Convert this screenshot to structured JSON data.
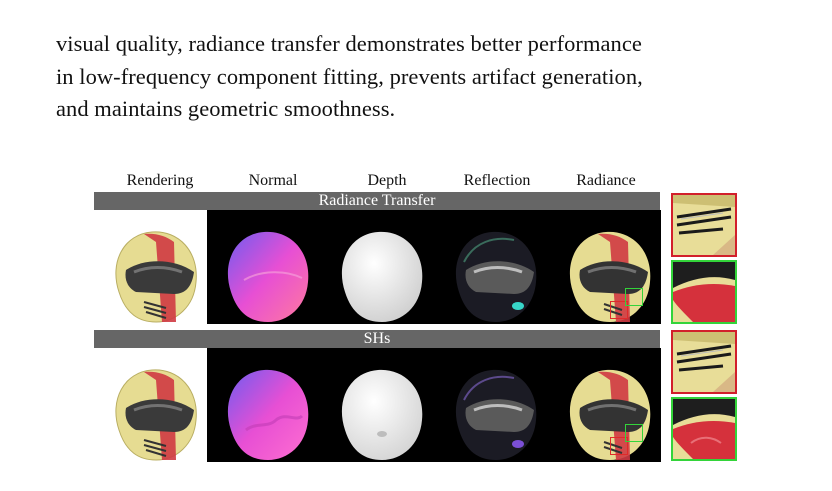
{
  "paragraph": {
    "lines": [
      "visual quality, radiance transfer demonstrates better performance",
      "in low-frequency component fitting, prevents artifact generation,",
      "and maintains geometric smoothness."
    ]
  },
  "figure": {
    "columns": [
      "Rendering",
      "Normal",
      "Depth",
      "Reflection",
      "Radiance"
    ],
    "rows": [
      {
        "label": "Radiance Transfer"
      },
      {
        "label": "SHs"
      }
    ],
    "colors": {
      "helmet_yellow": "#e6dc92",
      "helmet_red": "#cf3a43",
      "visor": "#3a3a3a",
      "normal_pink": "#e74fd4",
      "normal_blue": "#6f5cf0",
      "depth_gray": "#d8d8d8",
      "band_gray": "#666666",
      "inset_red": "#d21f2b",
      "inset_green": "#33d43a"
    }
  }
}
